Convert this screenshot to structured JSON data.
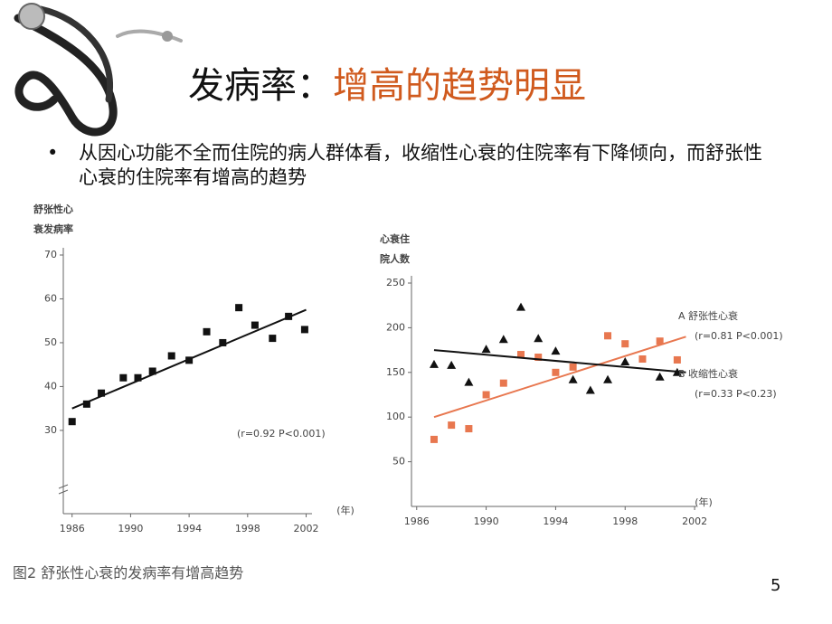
{
  "title": {
    "prefix": "发病率：",
    "highlight": "增高的趋势明显"
  },
  "bullet": "从因心功能不全而住院的病人群体看，收缩性心衰的住院率有下降倾向，而舒张性心衰的住院率有增高的趋势",
  "caption": "图2  舒张性心衰的发病率有增高趋势",
  "page_number": "5",
  "chart_data": [
    {
      "type": "scatter",
      "y_label": [
        "舒张性心",
        "衰发病率"
      ],
      "x_unit": "(年)",
      "xlim": [
        1985.4,
        2002.4
      ],
      "xticks": [
        1986,
        1990,
        1994,
        1998,
        2002
      ],
      "ylim": [
        11,
        70
      ],
      "yticks": [
        30,
        40,
        50,
        60,
        70
      ],
      "annotation": "(r=0.92 P<0.001)",
      "series": [
        {
          "color": "#111111",
          "marker": "square",
          "x": [
            1986,
            1987,
            1988,
            1989.5,
            1990.5,
            1991.5,
            1992.8,
            1994,
            1995.2,
            1996.3,
            1997.4,
            1998.5,
            1999.7,
            2000.8,
            2001.9
          ],
          "values": [
            32,
            36,
            38.5,
            42,
            42,
            43.5,
            47,
            46,
            52.5,
            50,
            58,
            54,
            51,
            56,
            53
          ],
          "trendline": {
            "x": [
              1986,
              2002
            ],
            "values": [
              35,
              57.5
            ]
          }
        }
      ]
    },
    {
      "type": "scatter",
      "y_label": [
        "心衰住",
        "院人数"
      ],
      "x_unit": "(年)",
      "xlim": [
        1985.7,
        2002.1
      ],
      "xticks": [
        1986,
        1990,
        1994,
        1998,
        2002
      ],
      "ylim": [
        0,
        250
      ],
      "yticks": [
        50,
        100,
        150,
        200,
        250
      ],
      "series": [
        {
          "name": "A 舒张性心衰",
          "stat": "(r=0.81 P<0.001)",
          "color": "#e8774f",
          "marker": "square",
          "x": [
            1987,
            1988,
            1989,
            1990,
            1991,
            1992,
            1993,
            1994,
            1995,
            1997,
            1998,
            1999,
            2000,
            2001
          ],
          "values": [
            75,
            91,
            87,
            125,
            138,
            170,
            167,
            150,
            156,
            191,
            182,
            165,
            185,
            164
          ],
          "trendline": {
            "x": [
              1987,
              2001.5
            ],
            "values": [
              100,
              190
            ]
          }
        },
        {
          "name": "B 收缩性心衰",
          "stat": "(r=0.33 P<0.23)",
          "color": "#111111",
          "marker": "triangle",
          "x": [
            1987,
            1988,
            1989,
            1990,
            1991,
            1992,
            1993,
            1994,
            1995,
            1996,
            1997,
            1998,
            2000,
            2001
          ],
          "values": [
            159,
            158,
            139,
            176,
            187,
            223,
            188,
            174,
            142,
            130,
            142,
            162,
            145,
            150
          ],
          "trendline": {
            "x": [
              1987,
              2001.5
            ],
            "values": [
              175,
              150
            ]
          }
        }
      ]
    }
  ]
}
